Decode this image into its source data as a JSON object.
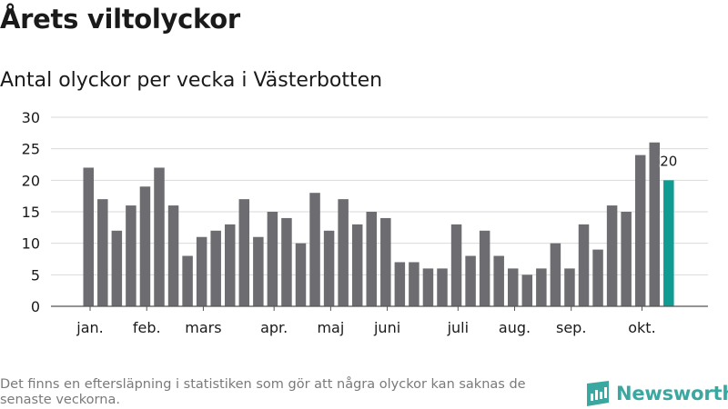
{
  "title": "Årets viltolyckor",
  "subtitle": "Antal olyckor per vecka i Västerbotten",
  "footnote": "Det finns en eftersläpning i statistiken som gör att några olyckor kan saknas de senaste veckorna.",
  "brand": "Newsworthy",
  "colors": {
    "bar": "#6d6c70",
    "highlight": "#109c92",
    "grid": "#d9d9d9",
    "axis": "#555555",
    "brand": "#3aa8a0"
  },
  "chart_data": {
    "type": "bar",
    "title": "Årets viltolyckor",
    "subtitle": "Antal olyckor per vecka i Västerbotten",
    "xlabel": "",
    "ylabel": "",
    "ylim": [
      0,
      30
    ],
    "yticks": [
      0,
      5,
      10,
      15,
      20,
      25,
      30
    ],
    "grid": true,
    "values": [
      22,
      17,
      12,
      16,
      19,
      22,
      16,
      8,
      11,
      12,
      13,
      17,
      11,
      15,
      14,
      10,
      18,
      12,
      17,
      13,
      15,
      14,
      7,
      7,
      6,
      6,
      13,
      8,
      12,
      8,
      6,
      5,
      6,
      10,
      6,
      13,
      9,
      16,
      15,
      24,
      26,
      20
    ],
    "highlight_index": 41,
    "highlight_label": "20",
    "month_labels": [
      {
        "label": "jan.",
        "bar_index": 0.5
      },
      {
        "label": "feb.",
        "bar_index": 4.5
      },
      {
        "label": "mars",
        "bar_index": 8.5
      },
      {
        "label": "apr.",
        "bar_index": 13.5
      },
      {
        "label": "maj",
        "bar_index": 17.5
      },
      {
        "label": "juni",
        "bar_index": 21.5
      },
      {
        "label": "juli",
        "bar_index": 26.5
      },
      {
        "label": "aug.",
        "bar_index": 30.5
      },
      {
        "label": "sep.",
        "bar_index": 34.5
      },
      {
        "label": "okt.",
        "bar_index": 39.5
      }
    ]
  }
}
